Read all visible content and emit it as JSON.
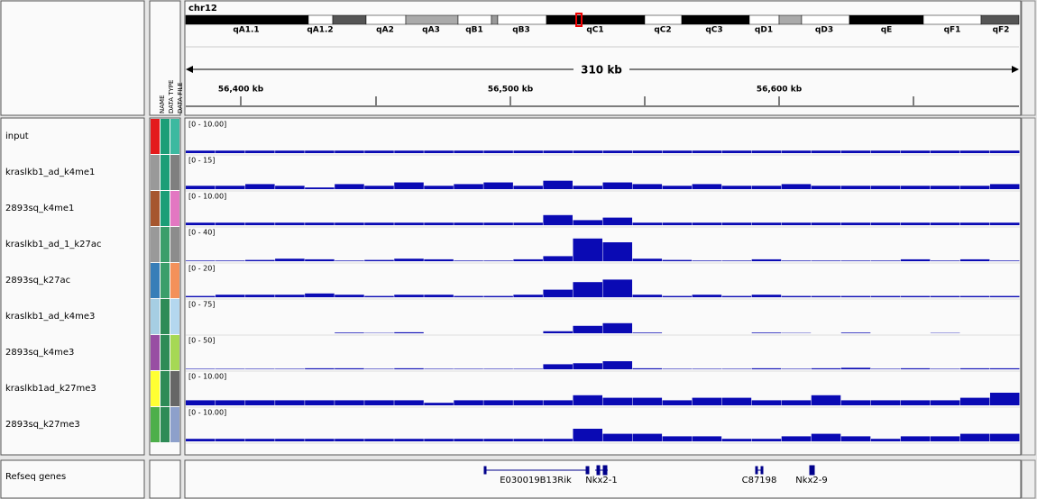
{
  "header": {
    "chromosome": "chr12",
    "bands": [
      "qA1.1",
      "qA1.2",
      "qA2",
      "qA3",
      "qB1",
      "qB3",
      "qC1",
      "qC2",
      "qC3",
      "qD1",
      "qD3",
      "qE",
      "qF1",
      "qF2"
    ],
    "span": "310 kb",
    "ruler_labels": [
      "56,400 kb",
      "56,500 kb",
      "56,600 kb"
    ],
    "attribute_headers": [
      "NAME",
      "DATA TYPE",
      "DATA FILE"
    ]
  },
  "tracks": [
    {
      "name": "input",
      "range_label": "[0 - 10.00]",
      "range_max": 10,
      "attr_colors": [
        "#e41a1c",
        "#1b9e77",
        "#3cb9a0"
      ],
      "values": [
        1,
        1,
        1,
        1,
        1,
        1,
        1,
        1,
        1,
        1,
        1,
        1,
        1,
        1,
        1,
        1,
        1,
        1,
        1,
        1,
        1,
        1,
        1,
        1,
        1,
        1,
        1,
        1
      ]
    },
    {
      "name": "kraslkb1_ad_k4me1",
      "range_label": "[0 - 15]",
      "range_max": 15,
      "attr_colors": [
        "#999999",
        "#1b9e77",
        "#7f7f7f"
      ],
      "values": [
        2,
        2,
        3,
        2,
        1,
        3,
        2,
        4,
        2,
        3,
        4,
        2,
        5,
        2,
        4,
        3,
        2,
        3,
        2,
        2,
        3,
        2,
        2,
        2,
        2,
        2,
        2,
        3
      ]
    },
    {
      "name": "2893sq_k4me1",
      "range_label": "[0 - 10.00]",
      "range_max": 10,
      "attr_colors": [
        "#a6562e",
        "#1b9e77",
        "#e377c2"
      ],
      "values": [
        1,
        1,
        1,
        1,
        1,
        1,
        1,
        1,
        1,
        1,
        1,
        1,
        4,
        2,
        3,
        1,
        1,
        1,
        1,
        1,
        1,
        1,
        1,
        1,
        1,
        1,
        1,
        1
      ]
    },
    {
      "name": "kraslkb1_ad_1_k27ac",
      "range_label": "[0 - 40]",
      "range_max": 40,
      "attr_colors": [
        "#999999",
        "#3a9e6a",
        "#8c8c8c"
      ],
      "values": [
        1,
        1,
        2,
        4,
        3,
        1,
        2,
        4,
        3,
        1,
        1,
        3,
        8,
        36,
        30,
        4,
        2,
        1,
        1,
        3,
        1,
        1,
        1,
        1,
        3,
        1,
        3,
        1
      ]
    },
    {
      "name": "2893sq_k27ac",
      "range_label": "[0 - 20]",
      "range_max": 20,
      "attr_colors": [
        "#377eb8",
        "#3a9e6a",
        "#f4915a"
      ],
      "values": [
        1,
        2,
        2,
        2,
        3,
        2,
        1,
        2,
        2,
        1,
        1,
        2,
        6,
        12,
        14,
        2,
        1,
        2,
        1,
        2,
        1,
        1,
        1,
        1,
        1,
        1,
        1,
        1
      ]
    },
    {
      "name": "kraslkb1_ad_k4me3",
      "range_label": "[0 - 75]",
      "range_max": 75,
      "attr_colors": [
        "#a6cee3",
        "#2e8b57",
        "#b4d7ef"
      ],
      "values": [
        0,
        0,
        0,
        0,
        0,
        2,
        1,
        3,
        0,
        0,
        0,
        0,
        6,
        22,
        30,
        2,
        0,
        0,
        0,
        2,
        1,
        0,
        2,
        0,
        0,
        1,
        0,
        0
      ]
    },
    {
      "name": "2893sq_k4me3",
      "range_label": "[0 - 50]",
      "range_max": 50,
      "attr_colors": [
        "#984ea3",
        "#2e8b57",
        "#a6d854"
      ],
      "values": [
        1,
        1,
        1,
        1,
        2,
        2,
        1,
        2,
        1,
        1,
        1,
        1,
        10,
        12,
        16,
        2,
        1,
        1,
        1,
        2,
        1,
        2,
        3,
        1,
        2,
        1,
        2,
        2
      ]
    },
    {
      "name": "kraslkb1ad_k27me3",
      "range_label": "[0 - 10.00]",
      "range_max": 10,
      "attr_colors": [
        "#ffff33",
        "#2e8b57",
        "#666666"
      ],
      "values": [
        2,
        2,
        2,
        2,
        2,
        2,
        2,
        2,
        1,
        2,
        2,
        2,
        2,
        4,
        3,
        3,
        2,
        3,
        3,
        2,
        2,
        4,
        2,
        2,
        2,
        2,
        3,
        5
      ]
    },
    {
      "name": "2893sq_k27me3",
      "range_label": "[0 - 10.00]",
      "range_max": 10,
      "attr_colors": [
        "#4daf4a",
        "#2e8b57",
        "#8da0cb"
      ],
      "values": [
        1,
        1,
        1,
        1,
        1,
        1,
        1,
        1,
        1,
        1,
        1,
        1,
        1,
        5,
        3,
        3,
        2,
        2,
        1,
        1,
        2,
        3,
        2,
        1,
        2,
        2,
        3,
        3
      ]
    }
  ],
  "genes": {
    "track_name": "Refseq genes",
    "labels": [
      "E030019B13Rik",
      "Nkx2-1",
      "C87198",
      "Nkx2-9"
    ]
  }
}
